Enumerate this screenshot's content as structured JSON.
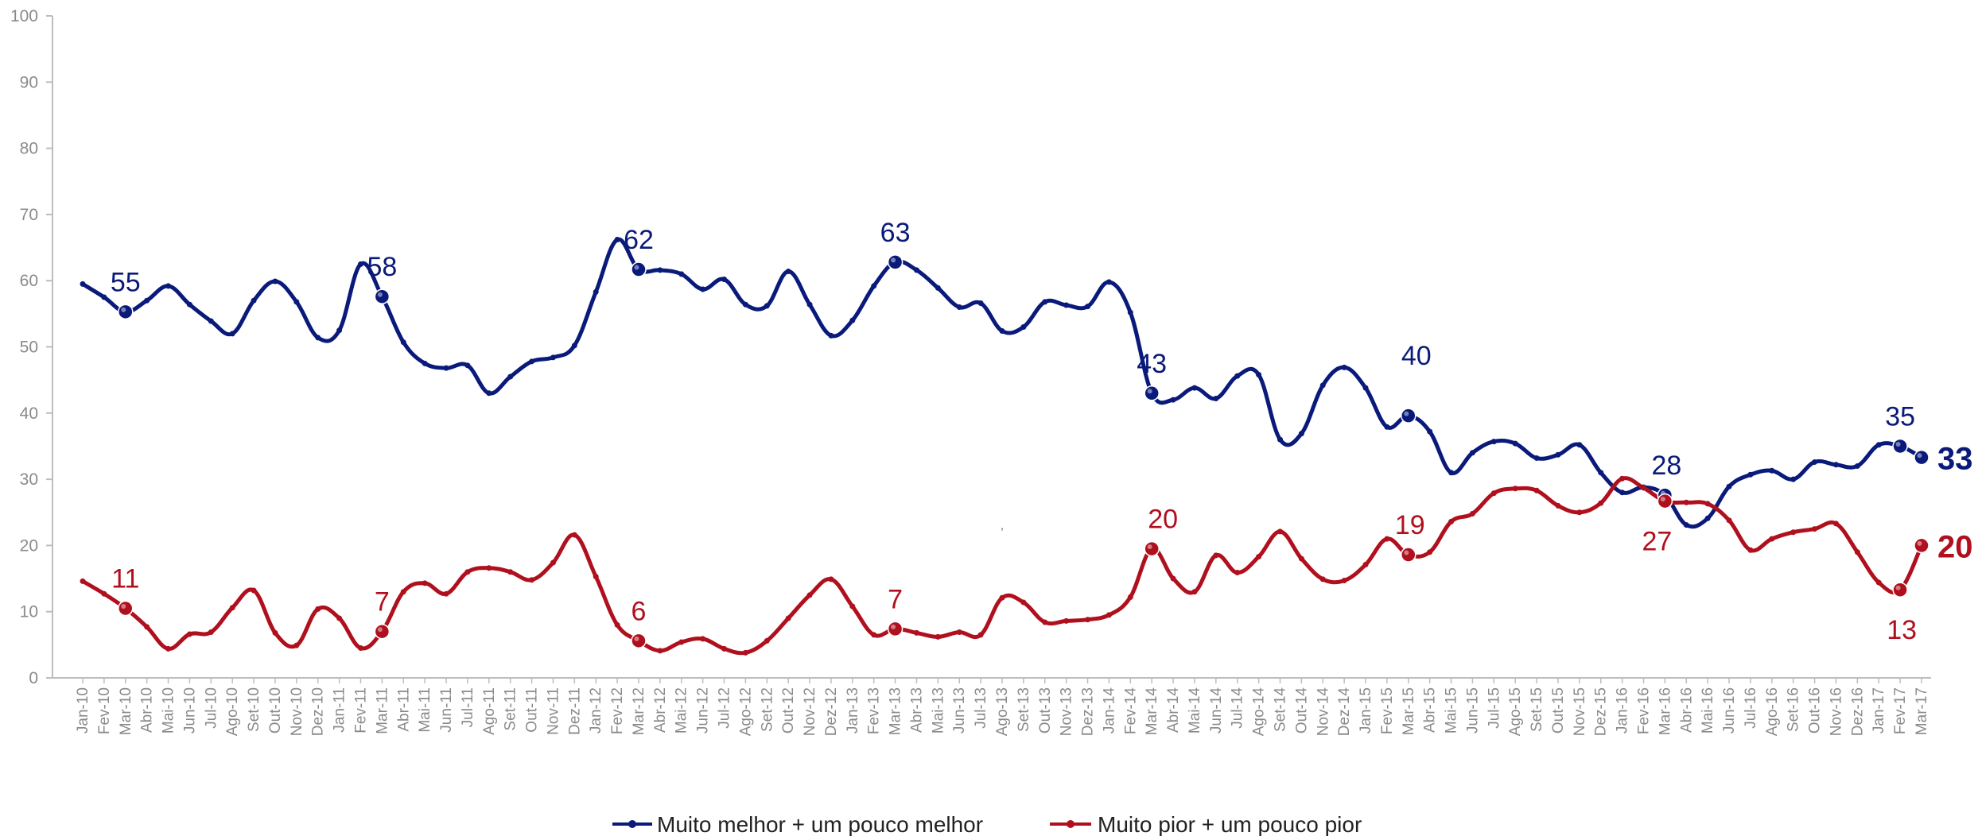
{
  "chart_data": {
    "type": "line",
    "title": "",
    "xlabel": "",
    "ylabel": "",
    "ylim": [
      0,
      100
    ],
    "yticks": [
      "0",
      "10",
      "20",
      "30",
      "40",
      "50",
      "60",
      "70",
      "80",
      "90",
      "100"
    ],
    "grid": false,
    "legend_position": "bottom",
    "categories": [
      "Jan-10",
      "Fev-10",
      "Mar-10",
      "Abr-10",
      "Mai-10",
      "Jun-10",
      "Jul-10",
      "Ago-10",
      "Set-10",
      "Out-10",
      "Nov-10",
      "Dez-10",
      "Jan-11",
      "Fev-11",
      "Mar-11",
      "Abr-11",
      "Mai-11",
      "Jun-11",
      "Jul-11",
      "Ago-11",
      "Set-11",
      "Out-11",
      "Nov-11",
      "Dez-11",
      "Jan-12",
      "Fev-12",
      "Mar-12",
      "Abr-12",
      "Mai-12",
      "Jun-12",
      "Jul-12",
      "Ago-12",
      "Set-12",
      "Out-12",
      "Nov-12",
      "Dez-12",
      "Jan-13",
      "Fev-13",
      "Mar-13",
      "Abr-13",
      "Mai-13",
      "Jun-13",
      "Jul-13",
      "Ago-13",
      "Set-13",
      "Out-13",
      "Nov-13",
      "Dez-13",
      "Jan-14",
      "Fev-14",
      "Mar-14",
      "Abr-14",
      "Mai-14",
      "Jun-14",
      "Jul-14",
      "Ago-14",
      "Set-14",
      "Out-14",
      "Nov-14",
      "Dez-14",
      "Jan-15",
      "Fev-15",
      "Mar-15",
      "Abr-15",
      "Mai-15",
      "Jun-15",
      "Jul-15",
      "Ago-15",
      "Set-15",
      "Out-15",
      "Nov-15",
      "Dez-15",
      "Jan-16",
      "Fev-16",
      "Mar-16",
      "Abr-16",
      "Mai-16",
      "Jun-16",
      "Jul-16",
      "Ago-16",
      "Set-16",
      "Out-16",
      "Nov-16",
      "Dez-16",
      "Jan-17",
      "Fev-17",
      "Mar-17"
    ],
    "series": [
      {
        "name": "Muito melhor + um pouco melhor",
        "color": "#0a1a7a",
        "values": [
          59.5,
          57.5,
          55.3,
          57.0,
          59.2,
          56.4,
          53.9,
          52.0,
          57.0,
          59.9,
          56.8,
          51.4,
          52.5,
          62.5,
          57.6,
          50.7,
          47.5,
          46.8,
          47.2,
          43.0,
          45.5,
          47.8,
          48.4,
          50.2,
          58.3,
          66.2,
          61.7,
          61.6,
          61.0,
          58.7,
          60.2,
          56.4,
          56.2,
          61.4,
          56.4,
          51.7,
          54.0,
          59.2,
          62.8,
          61.6,
          58.9,
          56.0,
          56.6,
          52.4,
          53.0,
          56.8,
          56.3,
          56.1,
          59.8,
          55.2,
          43.0,
          42.0,
          43.8,
          42.2,
          45.6,
          45.8,
          36.0,
          36.9,
          44.2,
          46.9,
          43.8,
          37.9,
          39.6,
          37.2,
          31.0,
          34.0,
          35.7,
          35.4,
          33.2,
          33.7,
          35.2,
          31.0,
          28.0,
          28.8,
          27.6,
          23.1,
          24.1,
          28.9,
          30.7,
          31.3,
          30.0,
          32.6,
          32.2,
          32.0,
          35.2,
          35.0,
          33.3
        ],
        "labels": [
          {
            "index": 2,
            "text": "55"
          },
          {
            "index": 14,
            "text": "58"
          },
          {
            "index": 26,
            "text": "62"
          },
          {
            "index": 38,
            "text": "63"
          },
          {
            "index": 50,
            "text": "43"
          },
          {
            "index": 62,
            "text": "40"
          },
          {
            "index": 74,
            "text": "28"
          },
          {
            "index": 85,
            "text": "35"
          },
          {
            "index": 86,
            "text": "33"
          }
        ]
      },
      {
        "name": "Muito pior + um pouco pior",
        "color": "#b0101e",
        "values": [
          14.6,
          12.7,
          10.5,
          7.7,
          4.4,
          6.6,
          6.9,
          10.6,
          13.2,
          6.8,
          4.9,
          10.4,
          9.0,
          4.5,
          7.0,
          13.0,
          14.3,
          12.7,
          16.0,
          16.6,
          16.0,
          14.8,
          17.4,
          21.6,
          15.3,
          8.0,
          5.6,
          4.1,
          5.4,
          5.9,
          4.4,
          3.8,
          5.6,
          9.0,
          12.5,
          14.9,
          10.8,
          6.5,
          7.4,
          6.8,
          6.2,
          6.9,
          6.5,
          12.1,
          11.4,
          8.4,
          8.6,
          8.8,
          9.5,
          12.2,
          19.5,
          15.0,
          13.0,
          18.5,
          15.9,
          18.3,
          22.1,
          18.0,
          14.9,
          14.7,
          17.1,
          21.0,
          18.6,
          19.0,
          23.6,
          24.8,
          27.9,
          28.6,
          28.3,
          26.0,
          25.0,
          26.4,
          30.1,
          28.7,
          26.7,
          26.5,
          26.3,
          23.8,
          19.3,
          21.0,
          22.0,
          22.5,
          23.3,
          19.0,
          14.4,
          13.3,
          20.0
        ],
        "labels": [
          {
            "index": 2,
            "text": "11"
          },
          {
            "index": 14,
            "text": "7"
          },
          {
            "index": 26,
            "text": "6"
          },
          {
            "index": 38,
            "text": "7"
          },
          {
            "index": 50,
            "text": "20"
          },
          {
            "index": 62,
            "text": "19"
          },
          {
            "index": 74,
            "text": "27"
          },
          {
            "index": 85,
            "text": "13"
          },
          {
            "index": 86,
            "text": "20"
          }
        ]
      }
    ],
    "stray_mark": ","
  }
}
